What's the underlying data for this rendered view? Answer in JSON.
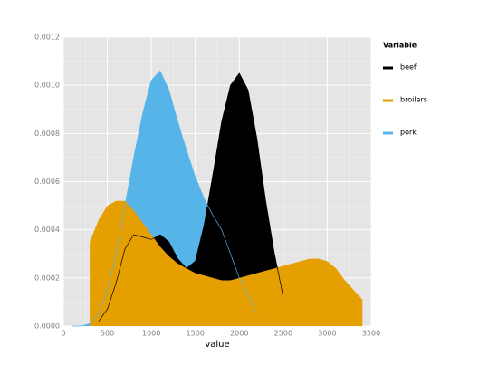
{
  "chart_data": {
    "type": "area",
    "x_label": "value",
    "legend_title": "Variable",
    "x": [
      100,
      200,
      300,
      400,
      500,
      600,
      700,
      800,
      900,
      1000,
      1100,
      1200,
      1300,
      1400,
      1500,
      1600,
      1700,
      1800,
      1900,
      2000,
      2100,
      2200,
      2300,
      2400,
      2500,
      2600,
      2700,
      2800,
      2900,
      3000,
      3100,
      3200,
      3300,
      3400
    ],
    "series": [
      {
        "name": "beef",
        "color": "#000000",
        "values": [
          null,
          null,
          null,
          2e-05,
          7e-05,
          0.00018,
          0.00032,
          0.00038,
          0.00037,
          0.00036,
          0.00038,
          0.00035,
          0.00028,
          0.00024,
          0.00027,
          0.00042,
          0.00063,
          0.00085,
          0.001,
          0.00105,
          0.00098,
          0.00078,
          0.00052,
          0.0003,
          0.00012,
          null,
          null,
          null,
          null,
          null,
          null,
          null,
          null,
          null
        ]
      },
      {
        "name": "broilers",
        "color": "#e69f00",
        "values": [
          null,
          null,
          0.00035,
          0.00044,
          0.0005,
          0.00052,
          0.00052,
          0.00048,
          0.00043,
          0.00038,
          0.00033,
          0.00029,
          0.00026,
          0.00024,
          0.00022,
          0.00021,
          0.0002,
          0.00019,
          0.00019,
          0.0002,
          0.00021,
          0.00022,
          0.00023,
          0.00024,
          0.00025,
          0.00026,
          0.00027,
          0.00028,
          0.00028,
          0.00027,
          0.00024,
          0.00019,
          0.00015,
          0.00011
        ]
      },
      {
        "name": "pork",
        "color": "#56b4e9",
        "values": [
          0,
          0,
          1e-05,
          5e-05,
          0.00015,
          0.0003,
          0.0005,
          0.0007,
          0.00088,
          0.00102,
          0.00106,
          0.00098,
          0.00085,
          0.00073,
          0.00062,
          0.00053,
          0.00046,
          0.0004,
          0.0003,
          0.0002,
          0.00013,
          5e-05,
          null,
          null,
          null,
          null,
          null,
          null,
          null,
          null,
          null,
          null,
          null,
          null
        ]
      }
    ],
    "draw_order": [
      2,
      0,
      1
    ],
    "xlim": [
      0,
      3500
    ],
    "xticks": [
      0,
      500,
      1000,
      1500,
      2000,
      2500,
      3000,
      3500
    ],
    "ylim": [
      0,
      0.0012
    ],
    "yticks": [
      {
        "value": 0,
        "label": "0.0000"
      },
      {
        "value": 0.0002,
        "label": "0.0002"
      },
      {
        "value": 0.0004,
        "label": "0.0004"
      },
      {
        "value": 0.0006,
        "label": "0.0006"
      },
      {
        "value": 0.0008,
        "label": "0.0008"
      },
      {
        "value": 0.001,
        "label": "0.0010"
      },
      {
        "value": 0.0012,
        "label": "0.0012"
      }
    ],
    "grid": true
  }
}
